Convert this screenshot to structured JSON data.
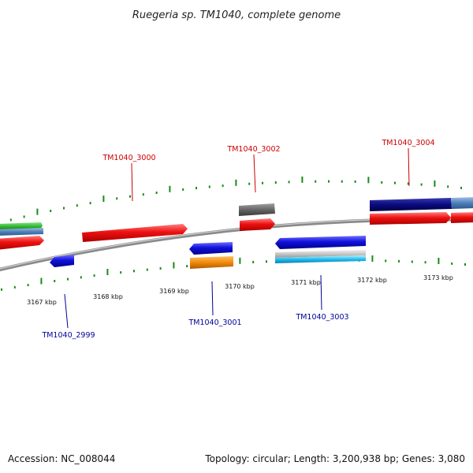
{
  "title": "Ruegeria sp. TM1040, complete genome",
  "footer": {
    "accession": "Accession: NC_008044",
    "summary": "Topology: circular; Length: 3,200,938 bp; Genes: 3,080"
  },
  "colors": {
    "backbone": "#888888",
    "tick": "#1a8a1a",
    "cds_red": "#ee1111",
    "cds_blue": "#1111dd",
    "cds_navy": "#0a0a80",
    "cds_gray": "#666666",
    "cds_orange": "#f08a0a",
    "cds_cyan": "#22bbee",
    "cds_green": "#33bb33",
    "cds_steel": "#4f7fb8",
    "label_top": "#cc0000",
    "label_bottom": "#000099"
  },
  "tick_labels": [
    "3167 kbp",
    "3168 kbp",
    "3169 kbp",
    "3170 kbp",
    "3171 kbp",
    "3172 kbp",
    "3173 kbp"
  ],
  "gene_labels": [
    {
      "name": "TM1040_2999",
      "strand": "reverse"
    },
    {
      "name": "TM1040_3000",
      "strand": "forward"
    },
    {
      "name": "TM1040_3001",
      "strand": "reverse"
    },
    {
      "name": "TM1040_3002",
      "strand": "forward"
    },
    {
      "name": "TM1040_3003",
      "strand": "reverse"
    },
    {
      "name": "TM1040_3004",
      "strand": "forward"
    }
  ]
}
